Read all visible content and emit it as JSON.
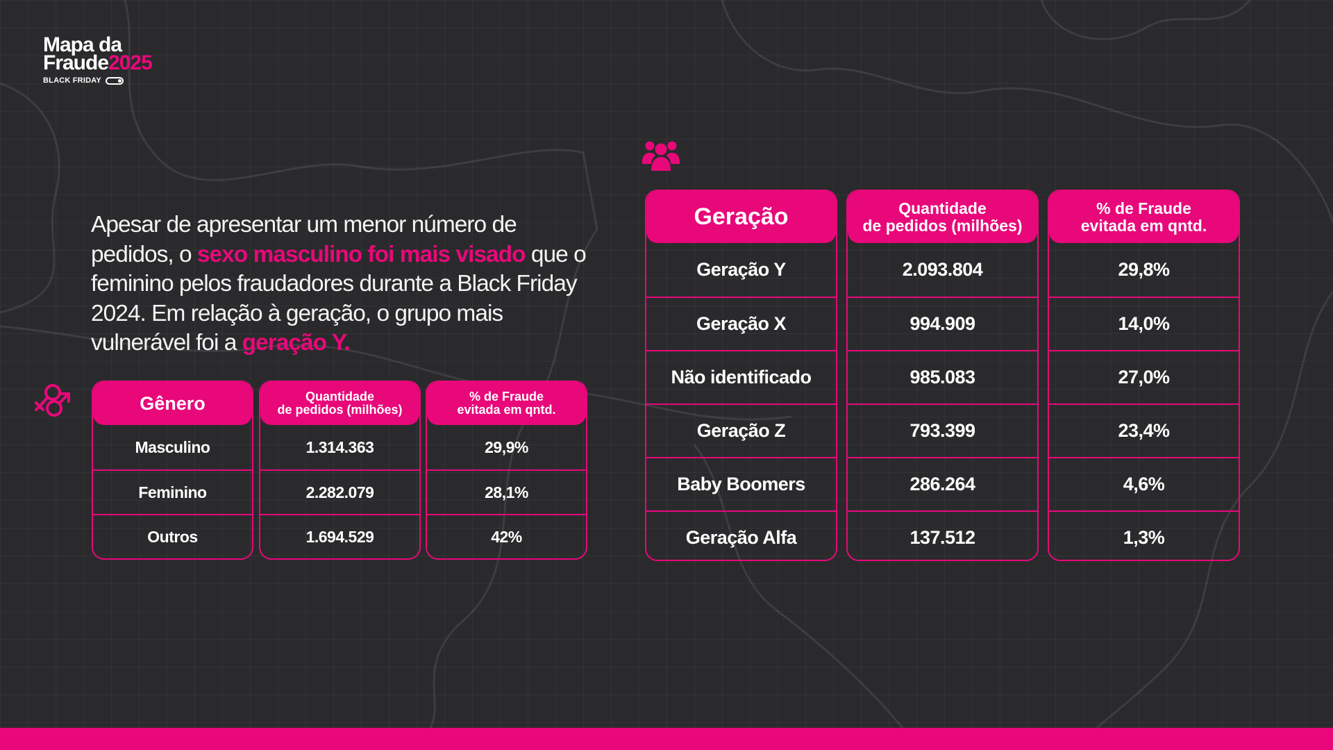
{
  "logo": {
    "line1": "Mapa da",
    "line2": "Fraude",
    "year": "2025",
    "subtitle": "BLACK FRIDAY"
  },
  "intro": {
    "part1": "Apesar de apresentar um menor número de pedidos, o ",
    "highlight1": "sexo masculino foi mais visado",
    "part2": " que o feminino pelos fraudadores durante a Black Friday 2024. Em relação à geração, o grupo mais vulnerável foi a ",
    "highlight2": "geração Y."
  },
  "icons": {
    "gender": "gender-symbols-icon",
    "generation": "people-group-icon"
  },
  "gender_table": {
    "headers": [
      "Gênero",
      "Quantidade\nde pedidos (milhões)",
      "% de Fraude\nevitada em qntd."
    ],
    "rows": [
      [
        "Masculino",
        "1.314.363",
        "29,9%"
      ],
      [
        "Feminino",
        "2.282.079",
        "28,1%"
      ],
      [
        "Outros",
        "1.694.529",
        "42%"
      ]
    ]
  },
  "generation_table": {
    "headers": [
      "Geração",
      "Quantidade\nde pedidos (milhões)",
      "% de Fraude\nevitada em qntd."
    ],
    "rows": [
      [
        "Geração Y",
        "2.093.804",
        "29,8%"
      ],
      [
        "Geração X",
        "994.909",
        "14,0%"
      ],
      [
        "Não identificado",
        "985.083",
        "27,0%"
      ],
      [
        "Geração Z",
        "793.399",
        "23,4%"
      ],
      [
        "Baby Boomers",
        "286.264",
        "4,6%"
      ],
      [
        "Geração Alfa",
        "137.512",
        "1,3%"
      ]
    ]
  },
  "colors": {
    "background": "#2a2a2c",
    "accent": "#e8087a",
    "text": "#ffffff"
  }
}
